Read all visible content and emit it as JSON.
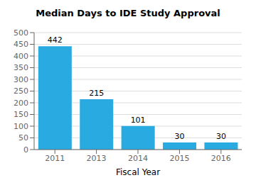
{
  "chart_data": {
    "type": "bar",
    "title": "Median Days to IDE Study Approval",
    "xlabel": "Fiscal Year",
    "categories": [
      "2011",
      "2013",
      "2014",
      "2015",
      "2016"
    ],
    "values": [
      442,
      215,
      101,
      30,
      30
    ],
    "color": "#29ABE2",
    "ylim": [
      0,
      500
    ],
    "yticks": [
      0,
      50,
      100,
      150,
      200,
      250,
      300,
      350,
      400,
      450,
      500
    ],
    "grid": true,
    "data_labels": true
  }
}
